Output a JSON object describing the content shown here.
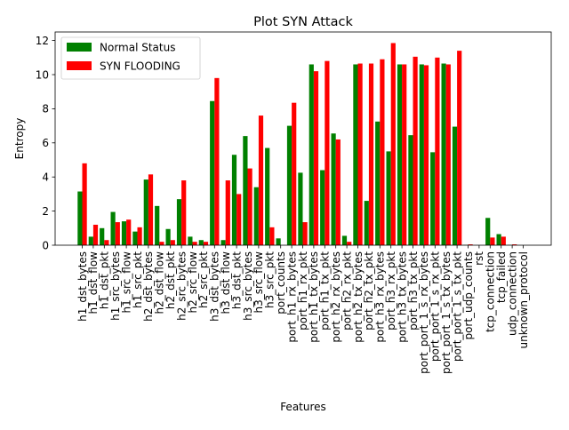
{
  "chart_data": {
    "type": "bar",
    "title": "Plot SYN Attack",
    "xlabel": "Features",
    "ylabel": "Entropy",
    "ylim": [
      0,
      12.5
    ],
    "yticks": [
      0,
      2,
      4,
      6,
      8,
      10,
      12
    ],
    "grid": false,
    "legend_position": "top-left",
    "categories": [
      "h1_dst_bytes",
      "h1_dst_flow",
      "h1_dst_pkt",
      "h1_src_bytes",
      "h1_src_flow",
      "h1_src_pkt",
      "h2_dst_bytes",
      "h2_dst_flow",
      "h2_dst_pkt",
      "h2_src_bytes",
      "h2_src_flow",
      "h2_src_pkt",
      "h3_dst_bytes",
      "h3_dst_flow",
      "h3_dst_pkt",
      "h3_src_bytes",
      "h3_src_flow",
      "h3_src_pkt",
      "port_counts",
      "port_h1_rx_bytes",
      "port_h1_rx_pkt",
      "port_h1_tx_bytes",
      "port_h1_tx_pkt",
      "port_h2_rx_bytes",
      "port_h2_rx_pkt",
      "port_h2_tx_bytes",
      "port_h2_tx_pkt",
      "port_h3_rx_bytes",
      "port_h3_rx_pkt",
      "port_h3_tx_bytes",
      "port_h3_tx_pkt",
      "port_port_1_s_rx_bytes",
      "port_port_1_s_rx_pkt",
      "port_port_1_s_tx_bytes",
      "port_port_1_s_tx_pkt",
      "port_udp_counts",
      "rst",
      "tcp_connection",
      "tcp_failed",
      "udp_connection",
      "unknown_protocol"
    ],
    "series": [
      {
        "name": "Normal Status",
        "color": "#008000",
        "values": [
          3.15,
          0.5,
          1.0,
          1.95,
          1.4,
          0.8,
          3.85,
          2.3,
          0.95,
          2.7,
          0.5,
          0.3,
          8.45,
          0.3,
          5.3,
          6.4,
          3.4,
          5.7,
          0.4,
          7.0,
          4.25,
          10.6,
          4.4,
          6.55,
          0.55,
          10.6,
          2.6,
          7.25,
          5.5,
          10.6,
          6.45,
          10.6,
          5.45,
          10.65,
          6.95,
          0.02,
          0.0,
          1.6,
          0.65,
          0.02,
          0.0
        ]
      },
      {
        "name": "SYN FLOODING",
        "color": "#ff0000",
        "values": [
          4.8,
          1.2,
          0.3,
          1.35,
          1.5,
          1.05,
          4.15,
          0.2,
          0.3,
          3.8,
          0.2,
          0.2,
          9.8,
          3.8,
          3.0,
          4.5,
          7.6,
          1.05,
          0.0,
          8.35,
          1.35,
          10.2,
          10.8,
          6.2,
          0.2,
          10.65,
          10.65,
          10.9,
          11.85,
          10.6,
          11.05,
          10.55,
          11.0,
          10.6,
          11.4,
          0.05,
          0.0,
          0.45,
          0.5,
          0.05,
          0.0
        ]
      }
    ]
  }
}
